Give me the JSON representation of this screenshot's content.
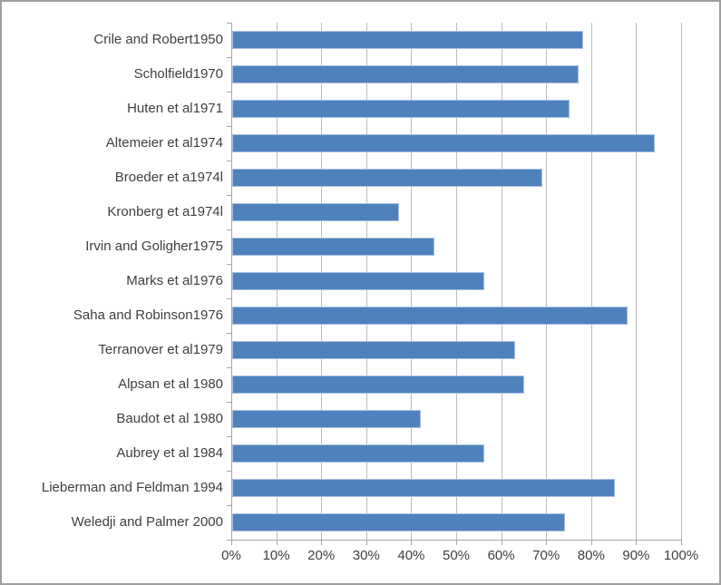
{
  "chart_data": {
    "type": "bar",
    "orientation": "horizontal",
    "title": "",
    "xlabel": "",
    "ylabel": "",
    "categories": [
      "Crile and Robert1950",
      "Scholfield1970",
      "Huten et al1971",
      "Altemeier et al1974",
      "Broeder et a1974l",
      "Kronberg et a1974l",
      "Irvin and Goligher1975",
      "Marks et al1976",
      "Saha and Robinson1976",
      "Terranover et al1979",
      "Alpsan et al 1980",
      "Baudot et al 1980",
      "Aubrey et al 1984",
      "Lieberman and Feldman 1994",
      "Weledji and Palmer 2000"
    ],
    "values": [
      78,
      77,
      75,
      94,
      69,
      37,
      45,
      56,
      88,
      63,
      65,
      42,
      56,
      85,
      74
    ],
    "value_unit": "%",
    "x_ticks": [
      "0%",
      "10%",
      "20%",
      "30%",
      "40%",
      "50%",
      "60%",
      "70%",
      "80%",
      "90%",
      "100%"
    ],
    "xlim": [
      0,
      100
    ],
    "grid": "vertical",
    "legend": "none",
    "colors": {
      "bar_fill": "#4f81bd",
      "bar_edge": "#a9c0e0",
      "gridline": "#bdbdbd",
      "axis": "#a6a6a6",
      "text": "#3f3f3f",
      "frame_border": "#9f9f9f",
      "background": "#ffffff"
    }
  }
}
